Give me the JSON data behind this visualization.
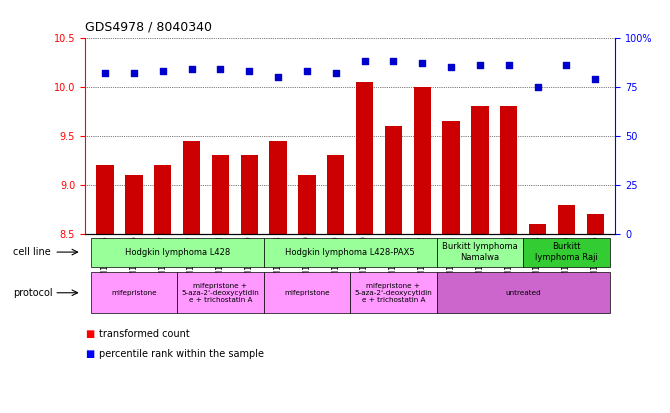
{
  "title": "GDS4978 / 8040340",
  "samples": [
    "GSM1081175",
    "GSM1081176",
    "GSM1081177",
    "GSM1081187",
    "GSM1081188",
    "GSM1081189",
    "GSM1081178",
    "GSM1081179",
    "GSM1081180",
    "GSM1081190",
    "GSM1081191",
    "GSM1081192",
    "GSM1081181",
    "GSM1081182",
    "GSM1081183",
    "GSM1081184",
    "GSM1081185",
    "GSM1081186"
  ],
  "bar_values": [
    9.2,
    9.1,
    9.2,
    9.45,
    9.3,
    9.3,
    9.45,
    9.1,
    9.3,
    10.05,
    9.6,
    10.0,
    9.65,
    9.8,
    9.8,
    8.6,
    8.8,
    8.7
  ],
  "dot_values": [
    82,
    82,
    83,
    84,
    84,
    83,
    80,
    83,
    82,
    88,
    88,
    87,
    85,
    86,
    86,
    75,
    86,
    79
  ],
  "ylim_left": [
    8.5,
    10.5
  ],
  "ylim_right": [
    0,
    100
  ],
  "yticks_left": [
    8.5,
    9.0,
    9.5,
    10.0,
    10.5
  ],
  "yticks_right": [
    0,
    25,
    50,
    75,
    100
  ],
  "bar_color": "#cc0000",
  "dot_color": "#0000cc",
  "bg_color": "#ffffff",
  "cell_line_groups": [
    {
      "label": "Hodgkin lymphoma L428",
      "start": 0,
      "end": 5,
      "color": "#99ff99"
    },
    {
      "label": "Hodgkin lymphoma L428-PAX5",
      "start": 6,
      "end": 11,
      "color": "#99ff99"
    },
    {
      "label": "Burkitt lymphoma\nNamalwa",
      "start": 12,
      "end": 14,
      "color": "#99ff99"
    },
    {
      "label": "Burkitt\nlymphoma Raji",
      "start": 15,
      "end": 17,
      "color": "#33cc33"
    }
  ],
  "protocol_groups": [
    {
      "label": "mifepristone",
      "start": 0,
      "end": 2,
      "color": "#ff99ff"
    },
    {
      "label": "mifepristone +\n5-aza-2'-deoxycytidin\ne + trichostatin A",
      "start": 3,
      "end": 5,
      "color": "#ff99ff"
    },
    {
      "label": "mifepristone",
      "start": 6,
      "end": 8,
      "color": "#ff99ff"
    },
    {
      "label": "mifepristone +\n5-aza-2'-deoxycytidin\ne + trichostatin A",
      "start": 9,
      "end": 11,
      "color": "#ff99ff"
    },
    {
      "label": "untreated",
      "start": 12,
      "end": 17,
      "color": "#cc66cc"
    }
  ],
  "legend_bar_label": "transformed count",
  "legend_dot_label": "percentile rank within the sample",
  "cell_line_label": "cell line",
  "protocol_label": "protocol"
}
